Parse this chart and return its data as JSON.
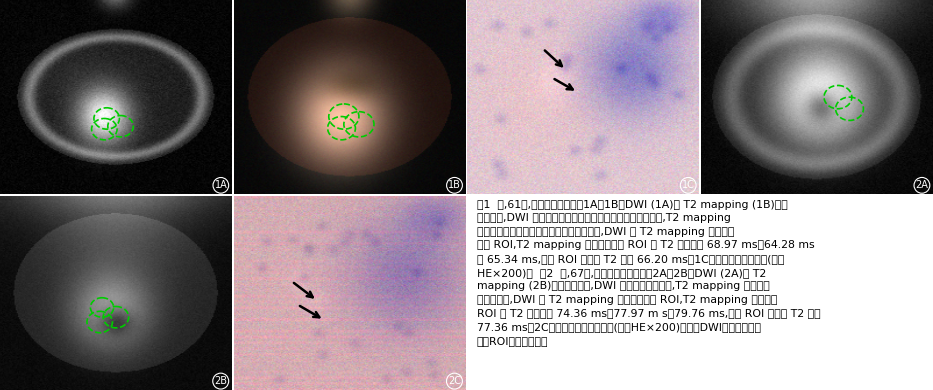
{
  "figure_width": 9.33,
  "figure_height": 3.9,
  "dpi": 100,
  "background_color": "#ffffff",
  "caption_text": "图1  男,61岁,直肠癌脉管侵犯。1A、1B：DWI (1A)及 T2 mapping (1B)示直\n肠癌病灶,DWI 表现为直肠左侧壁突向腔内不规则高信号肿块,T2 mapping\n表现为左侧壁突向腔内不规则稍高信号肿块,DWI 及 T2 mapping 图像可见\n三个 ROI,T2 mapping 图像测得三个 ROI 的 T2 值分别为 68.97 ms、64.28 ms\n及 65.34 ms,三个 ROI 的平均 T2 值为 66.20 ms。1C：镜下显示脉管侵犯(箭；\nHE×200)。  图2  男,67岁,直肠癌脉管非侵犯。2A、2B：DWI (2A)及 T2\nmapping (2B)示直肠癌病灶,DWI 表现为环壁高信号,T2 mapping 表现为环\n壁等低信号,DWI 及 T2 mapping 图像可见三个 ROI,T2 mapping 测得三个\nROI 的 T2 值分别为 74.36 ms、77.97 m s、79.76 ms,三个 ROI 的平均 T2 值为\n77.36 ms。2C：镜下显示脉管未侵犯(箭；HE×200)。注：DWI：扩散加权成\n像；ROI：感兴趣区。",
  "roi_circle_color": "#00cc00",
  "font_size_caption": 7.8
}
